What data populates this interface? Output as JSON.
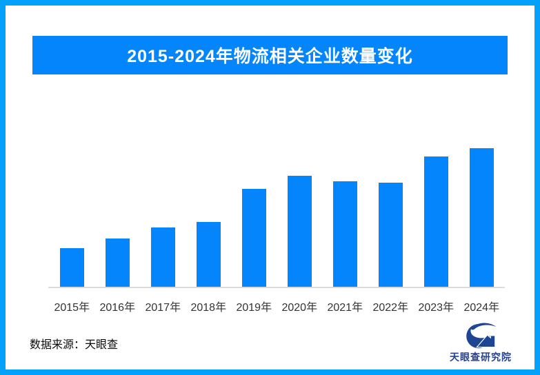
{
  "page": {
    "background": "#ffffff",
    "border_color": "#03A1F9"
  },
  "header": {
    "title": "2015-2024年物流相关企业数量变化",
    "banner_color": "#0585FC",
    "title_color": "#ffffff"
  },
  "chart_data": {
    "type": "bar",
    "title": "2015-2024年物流相关企业数量变化",
    "categories": [
      "2015年",
      "2016年",
      "2017年",
      "2018年",
      "2019年",
      "2020年",
      "2021年",
      "2022年",
      "2023年",
      "2024年"
    ],
    "values": [
      28,
      35,
      43,
      47,
      71,
      80,
      76,
      75,
      94,
      100
    ],
    "units": "relative index (no y-axis labels shown in image; 2024 bar = 100)",
    "bar_color": "#0585FC",
    "axis_line_color": "#DCDCDC",
    "tick_label_color": "#333333",
    "grid": false,
    "legend": false,
    "xlabel": "",
    "ylabel": "",
    "ylim": [
      0,
      105
    ]
  },
  "footer": {
    "source_label": "数据来源：天眼查",
    "brand_name": "天眼查研究院",
    "brand_logo_color": "#1D4593",
    "brand_text_color": "#26418F"
  }
}
